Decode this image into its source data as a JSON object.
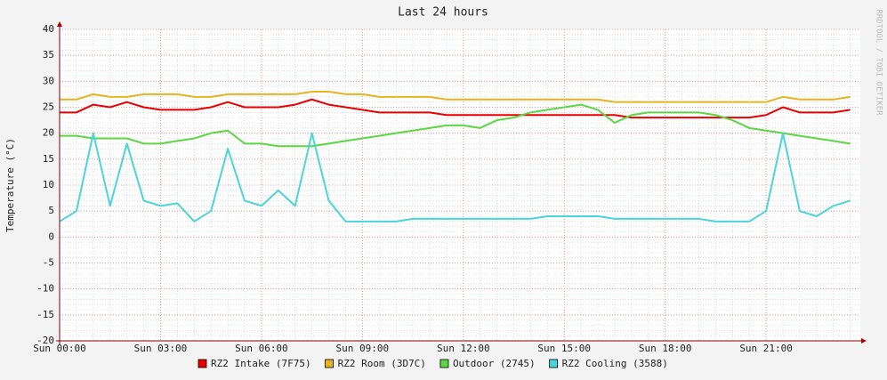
{
  "chart_data": {
    "type": "line",
    "title": "Last 24 hours",
    "ylabel": "Temperature (°C)",
    "watermark": "RRDTOOL / TOBI OETIKER",
    "x": [
      0,
      0.5,
      1,
      1.5,
      2,
      2.5,
      3,
      3.5,
      4,
      4.5,
      5,
      5.5,
      6,
      6.5,
      7,
      7.5,
      8,
      8.5,
      9,
      9.5,
      10,
      10.5,
      11,
      11.5,
      12,
      12.5,
      13,
      13.5,
      14,
      14.5,
      15,
      15.5,
      16,
      16.5,
      17,
      17.5,
      18,
      18.5,
      19,
      19.5,
      20,
      20.5,
      21,
      21.5,
      22,
      22.5,
      23,
      23.5
    ],
    "series": [
      {
        "name": "RZ2 Intake (7F75)",
        "color": "#e80000",
        "values": [
          24,
          24,
          25.5,
          25,
          26,
          25,
          24.5,
          24.5,
          24.5,
          25,
          26,
          25,
          25,
          25,
          25.5,
          26.5,
          25.5,
          25,
          24.5,
          24,
          24,
          24,
          24,
          23.5,
          23.5,
          23.5,
          23.5,
          23.5,
          23.5,
          23.5,
          23.5,
          23.5,
          23.5,
          23.5,
          23,
          23,
          23,
          23,
          23,
          23,
          23,
          23,
          23.5,
          25,
          24,
          24,
          24,
          24.5
        ]
      },
      {
        "name": "RZ2 Room (3D7C)",
        "color": "#e6b420",
        "values": [
          26.5,
          26.5,
          27.5,
          27,
          27,
          27.5,
          27.5,
          27.5,
          27,
          27,
          27.5,
          27.5,
          27.5,
          27.5,
          27.5,
          28,
          28,
          27.5,
          27.5,
          27,
          27,
          27,
          27,
          26.5,
          26.5,
          26.5,
          26.5,
          26.5,
          26.5,
          26.5,
          26.5,
          26.5,
          26.5,
          26,
          26,
          26,
          26,
          26,
          26,
          26,
          26,
          26,
          26,
          27,
          26.5,
          26.5,
          26.5,
          27
        ]
      },
      {
        "name": "Outdoor (2745)",
        "color": "#5ad742",
        "values": [
          19.5,
          19.5,
          19,
          19,
          19,
          18,
          18,
          18.5,
          19,
          20,
          20.5,
          18,
          18,
          17.5,
          17.5,
          17.5,
          18,
          18.5,
          19,
          19.5,
          20,
          20.5,
          21,
          21.5,
          21.5,
          21,
          22.5,
          23,
          24,
          24.5,
          25,
          25.5,
          24.5,
          22,
          23.5,
          24,
          24,
          24,
          24,
          23.5,
          22.5,
          21,
          20.5,
          20,
          19.5,
          19,
          18.5,
          18
        ]
      },
      {
        "name": "RZ2 Cooling (3588)",
        "color": "#4ad4dc",
        "values": [
          3,
          5,
          20,
          6,
          18,
          7,
          6,
          6.5,
          3,
          5,
          17,
          7,
          6,
          9,
          6,
          20,
          7,
          3,
          3,
          3,
          3,
          3.5,
          3.5,
          3.5,
          3.5,
          3.5,
          3.5,
          3.5,
          3.5,
          4,
          4,
          4,
          4,
          3.5,
          3.5,
          3.5,
          3.5,
          3.5,
          3.5,
          3,
          3,
          3,
          5,
          20,
          5,
          4,
          6,
          7
        ]
      }
    ],
    "xlim": [
      0,
      23.8
    ],
    "ylim": [
      -20,
      40
    ],
    "xticks": [
      {
        "value": 0,
        "label": "Sun 00:00"
      },
      {
        "value": 3,
        "label": "Sun 03:00"
      },
      {
        "value": 6,
        "label": "Sun 06:00"
      },
      {
        "value": 9,
        "label": "Sun 09:00"
      },
      {
        "value": 12,
        "label": "Sun 12:00"
      },
      {
        "value": 15,
        "label": "Sun 15:00"
      },
      {
        "value": 18,
        "label": "Sun 18:00"
      },
      {
        "value": 21,
        "label": "Sun 21:00"
      }
    ],
    "yticks": [
      -20,
      -15,
      -10,
      -5,
      0,
      5,
      10,
      15,
      20,
      25,
      30,
      35,
      40
    ],
    "grid": true,
    "legend": "bottom"
  }
}
